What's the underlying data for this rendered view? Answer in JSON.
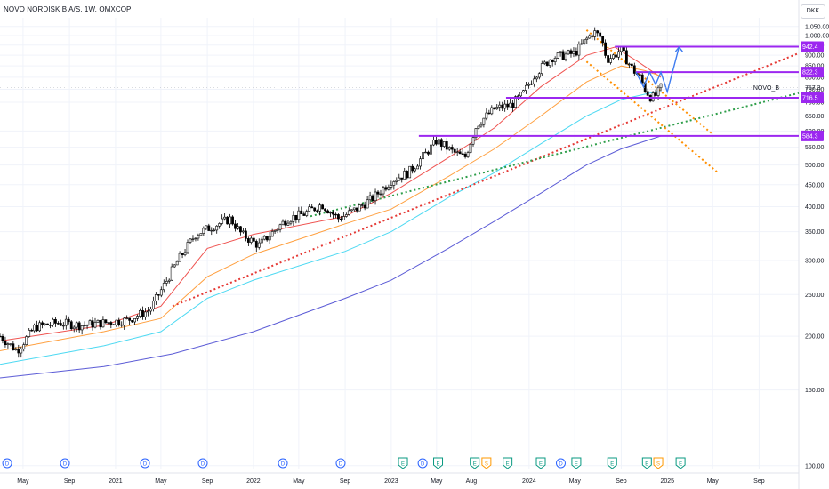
{
  "header": {
    "title": "NOVO NORDISK B A/S, 1W, OMXCOP"
  },
  "currency": "DKK",
  "colors": {
    "price": "#000000",
    "axis_text": "#131722",
    "grid": "#f0f3fa",
    "level": "#9c27f0",
    "level_label_bg": "#9c27f0",
    "ma_red": "#ef5350",
    "ma_orange": "#ffa040",
    "ma_cyan": "#4dd9f2",
    "ma_blue": "#5b5bd6",
    "trend_red": "#e53935",
    "trend_green": "#2e9e4a",
    "channel": "#ff8f00",
    "projection": "#3d7bf0",
    "last_price_label": "#131722"
  },
  "chart_data": {
    "type": "candlestick",
    "title": "NOVO NORDISK B A/S, 1W, OMXCOP",
    "scale": "log",
    "ylim": [
      98,
      1100
    ],
    "y_ticks": [
      100,
      150,
      200,
      250,
      300,
      350,
      400,
      450,
      500,
      550,
      600,
      650,
      700,
      750,
      800,
      850,
      900,
      950,
      1000,
      1050
    ],
    "y_tick_labels": [
      "100.00",
      "150.00",
      "200.00",
      "250.00",
      "300.00",
      "350.00",
      "400.00",
      "450.00",
      "500.00",
      "550.00",
      "600.00",
      "650.00",
      "700.00",
      "750.00",
      "800.00",
      "850.00",
      "900.00",
      "950.00",
      "1,000.00",
      "1,050.00"
    ],
    "xlim": [
      "2020-03-01",
      "2025-12-15"
    ],
    "x_ticks": [
      {
        "date": "2020-05-01",
        "label": "May"
      },
      {
        "date": "2020-09-01",
        "label": "Sep"
      },
      {
        "date": "2021-01-01",
        "label": "2021"
      },
      {
        "date": "2021-05-01",
        "label": "May"
      },
      {
        "date": "2021-09-01",
        "label": "Sep"
      },
      {
        "date": "2022-01-01",
        "label": "2022"
      },
      {
        "date": "2022-05-01",
        "label": "May"
      },
      {
        "date": "2022-09-01",
        "label": "Sep"
      },
      {
        "date": "2023-01-01",
        "label": "2023"
      },
      {
        "date": "2023-05-01",
        "label": "May"
      },
      {
        "date": "2023-08-01",
        "label": "Aug"
      },
      {
        "date": "2024-01-01",
        "label": "2024"
      },
      {
        "date": "2024-05-01",
        "label": "May"
      },
      {
        "date": "2024-09-01",
        "label": "Sep"
      },
      {
        "date": "2025-01-01",
        "label": "2025"
      },
      {
        "date": "2025-05-01",
        "label": "May"
      },
      {
        "date": "2025-09-01",
        "label": "Sep"
      }
    ],
    "price_path": [
      [
        "2020-03-01",
        200
      ],
      [
        "2020-04-15",
        185
      ],
      [
        "2020-06-01",
        210
      ],
      [
        "2020-08-01",
        215
      ],
      [
        "2020-10-01",
        212
      ],
      [
        "2020-12-01",
        215
      ],
      [
        "2021-02-01",
        218
      ],
      [
        "2021-04-01",
        230
      ],
      [
        "2021-05-01",
        255
      ],
      [
        "2021-06-15",
        300
      ],
      [
        "2021-08-01",
        345
      ],
      [
        "2021-09-15",
        360
      ],
      [
        "2021-11-01",
        375
      ],
      [
        "2021-12-01",
        345
      ],
      [
        "2022-01-15",
        325
      ],
      [
        "2022-02-15",
        345
      ],
      [
        "2022-04-01",
        375
      ],
      [
        "2022-05-15",
        385
      ],
      [
        "2022-07-01",
        405
      ],
      [
        "2022-08-15",
        375
      ],
      [
        "2022-10-01",
        395
      ],
      [
        "2022-11-15",
        420
      ],
      [
        "2023-01-01",
        460
      ],
      [
        "2023-02-15",
        480
      ],
      [
        "2023-04-01",
        530
      ],
      [
        "2023-05-01",
        570
      ],
      [
        "2023-06-15",
        535
      ],
      [
        "2023-07-15",
        520
      ],
      [
        "2023-08-15",
        620
      ],
      [
        "2023-10-01",
        675
      ],
      [
        "2023-11-15",
        690
      ],
      [
        "2023-12-15",
        730
      ],
      [
        "2024-01-15",
        810
      ],
      [
        "2024-03-01",
        890
      ],
      [
        "2024-04-01",
        900
      ],
      [
        "2024-05-01",
        910
      ],
      [
        "2024-06-01",
        980
      ],
      [
        "2024-06-20",
        1020
      ],
      [
        "2024-07-10",
        990
      ],
      [
        "2024-07-25",
        880
      ],
      [
        "2024-08-15",
        900
      ],
      [
        "2024-08-30",
        930
      ],
      [
        "2024-09-15",
        880
      ],
      [
        "2024-10-01",
        835
      ],
      [
        "2024-10-20",
        800
      ],
      [
        "2024-11-05",
        745
      ],
      [
        "2024-11-20",
        715
      ],
      [
        "2024-12-05",
        730
      ],
      [
        "2024-12-15",
        757.3
      ]
    ],
    "moving_averages": [
      {
        "color_key": "ma_red",
        "points": [
          [
            "2020-03-01",
            195
          ],
          [
            "2020-12-01",
            212
          ],
          [
            "2021-05-01",
            235
          ],
          [
            "2021-09-01",
            320
          ],
          [
            "2022-01-01",
            345
          ],
          [
            "2022-09-01",
            380
          ],
          [
            "2023-01-01",
            430
          ],
          [
            "2023-06-01",
            520
          ],
          [
            "2023-10-01",
            610
          ],
          [
            "2024-02-01",
            760
          ],
          [
            "2024-06-01",
            900
          ],
          [
            "2024-08-15",
            940
          ],
          [
            "2024-10-15",
            870
          ],
          [
            "2024-12-15",
            800
          ]
        ]
      },
      {
        "color_key": "ma_orange",
        "points": [
          [
            "2020-03-01",
            185
          ],
          [
            "2020-12-01",
            205
          ],
          [
            "2021-05-01",
            220
          ],
          [
            "2021-09-01",
            275
          ],
          [
            "2022-01-01",
            310
          ],
          [
            "2022-09-01",
            365
          ],
          [
            "2023-01-01",
            395
          ],
          [
            "2023-06-01",
            470
          ],
          [
            "2023-10-01",
            545
          ],
          [
            "2024-02-01",
            650
          ],
          [
            "2024-06-01",
            780
          ],
          [
            "2024-09-01",
            850
          ],
          [
            "2024-11-01",
            830
          ],
          [
            "2024-12-15",
            805
          ]
        ]
      },
      {
        "color_key": "ma_cyan",
        "points": [
          [
            "2020-03-01",
            172
          ],
          [
            "2020-12-01",
            190
          ],
          [
            "2021-05-01",
            205
          ],
          [
            "2021-09-01",
            245
          ],
          [
            "2022-01-01",
            270
          ],
          [
            "2022-09-01",
            315
          ],
          [
            "2023-01-01",
            350
          ],
          [
            "2023-06-01",
            420
          ],
          [
            "2023-10-01",
            480
          ],
          [
            "2024-02-01",
            560
          ],
          [
            "2024-06-01",
            650
          ],
          [
            "2024-09-01",
            710
          ],
          [
            "2024-12-15",
            745
          ]
        ]
      },
      {
        "color_key": "ma_blue",
        "points": [
          [
            "2020-03-01",
            160
          ],
          [
            "2020-12-01",
            170
          ],
          [
            "2021-06-01",
            182
          ],
          [
            "2022-01-01",
            205
          ],
          [
            "2022-09-01",
            245
          ],
          [
            "2023-01-01",
            270
          ],
          [
            "2023-06-01",
            320
          ],
          [
            "2023-10-01",
            370
          ],
          [
            "2024-02-01",
            430
          ],
          [
            "2024-06-01",
            500
          ],
          [
            "2024-09-01",
            545
          ],
          [
            "2024-12-15",
            584
          ]
        ]
      }
    ],
    "levels": [
      {
        "price": 942.4,
        "label": "942.4",
        "from": "2024-08-15"
      },
      {
        "price": 822.3,
        "label": "822.3",
        "from": "2024-10-10"
      },
      {
        "price": 716.5,
        "label": "716.5",
        "from": "2023-11-01"
      },
      {
        "price": 584.3,
        "label": "584.3",
        "from": "2023-03-15"
      }
    ],
    "last_price": {
      "value": 757.3,
      "label": "757.3",
      "symbol": "NOVO_B"
    },
    "trendlines": [
      {
        "color_key": "trend_red",
        "from": [
          "2021-06-01",
          235
        ],
        "to": [
          "2025-12-15",
          910
        ]
      },
      {
        "color_key": "trend_green",
        "from": [
          "2022-06-01",
          380
        ],
        "to": [
          "2025-12-15",
          735
        ]
      },
      {
        "color_key": "channel",
        "from": [
          "2024-06-01",
          1030
        ],
        "to": [
          "2025-05-01",
          590
        ]
      },
      {
        "color_key": "channel",
        "from": [
          "2024-06-01",
          870
        ],
        "to": [
          "2025-05-15",
          480
        ]
      }
    ],
    "projection": [
      [
        "2024-10-10",
        822
      ],
      [
        "2024-10-30",
        760
      ],
      [
        "2024-11-15",
        822
      ],
      [
        "2024-12-01",
        770
      ],
      [
        "2024-12-15",
        822
      ],
      [
        "2025-01-01",
        740
      ],
      [
        "2025-02-01",
        940
      ]
    ],
    "events": [
      {
        "date": "2020-03-20",
        "type": "D"
      },
      {
        "date": "2020-08-20",
        "type": "D"
      },
      {
        "date": "2021-03-20",
        "type": "D"
      },
      {
        "date": "2021-08-20",
        "type": "D"
      },
      {
        "date": "2022-03-20",
        "type": "D"
      },
      {
        "date": "2022-08-20",
        "type": "D"
      },
      {
        "date": "2023-02-01",
        "type": "E"
      },
      {
        "date": "2023-03-25",
        "type": "D"
      },
      {
        "date": "2023-05-05",
        "type": "E"
      },
      {
        "date": "2023-08-10",
        "type": "E"
      },
      {
        "date": "2023-09-10",
        "type": "S"
      },
      {
        "date": "2023-11-05",
        "type": "E"
      },
      {
        "date": "2024-02-01",
        "type": "E"
      },
      {
        "date": "2024-03-25",
        "type": "D"
      },
      {
        "date": "2024-05-05",
        "type": "E"
      },
      {
        "date": "2024-08-08",
        "type": "E"
      },
      {
        "date": "2024-11-08",
        "type": "E"
      },
      {
        "date": "2024-12-08",
        "type": "S"
      },
      {
        "date": "2025-02-05",
        "type": "E"
      }
    ]
  }
}
